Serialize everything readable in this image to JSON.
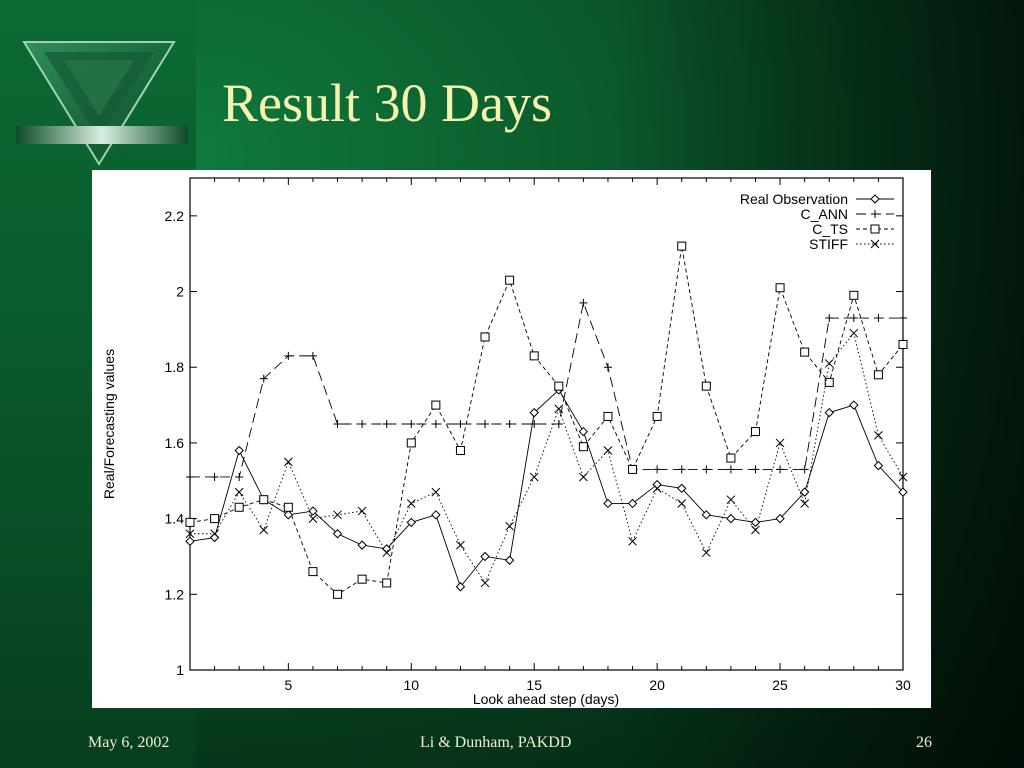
{
  "slide": {
    "title": "Result 30 Days",
    "footer": {
      "date": "May 6, 2002",
      "author": "Li & Dunham, PAKDD",
      "page": "26"
    },
    "colors": {
      "title_text": "#f6f2b0",
      "background": "#0b5a2c"
    },
    "logo_icon": "green-inverted-triangle-icon"
  },
  "chart_data": {
    "type": "line",
    "title": "",
    "xlabel": "Look ahead step (days)",
    "ylabel": "Real/Forecasting values",
    "xlim": [
      1,
      30
    ],
    "ylim": [
      1,
      2.3
    ],
    "xticks": [
      5,
      10,
      15,
      20,
      25,
      30
    ],
    "yticks": [
      1,
      1.2,
      1.4,
      1.6,
      1.8,
      2,
      2.2
    ],
    "ytick_labels": [
      "1",
      "1.2",
      "1.4",
      "1.6",
      "1.8",
      "2",
      "2.2"
    ],
    "grid": false,
    "legend_position": "top-right",
    "x": [
      1,
      2,
      3,
      4,
      5,
      6,
      7,
      8,
      9,
      10,
      11,
      12,
      13,
      14,
      15,
      16,
      17,
      18,
      19,
      20,
      21,
      22,
      23,
      24,
      25,
      26,
      27,
      28,
      29,
      30
    ],
    "series": [
      {
        "name": "Real Observation",
        "marker": "diamond",
        "dash": "solid",
        "values": [
          1.34,
          1.35,
          1.58,
          1.45,
          1.41,
          1.42,
          1.36,
          1.33,
          1.32,
          1.39,
          1.41,
          1.22,
          1.3,
          1.29,
          1.68,
          1.74,
          1.63,
          1.44,
          1.44,
          1.49,
          1.48,
          1.41,
          1.4,
          1.39,
          1.4,
          1.47,
          1.68,
          1.7,
          1.54,
          1.47
        ]
      },
      {
        "name": "C_ANN",
        "marker": "plus",
        "dash": "long-dash",
        "values": [
          1.51,
          1.51,
          1.51,
          1.77,
          1.83,
          1.83,
          1.65,
          1.65,
          1.65,
          1.65,
          1.65,
          1.65,
          1.65,
          1.65,
          1.65,
          1.65,
          1.97,
          1.8,
          1.53,
          1.53,
          1.53,
          1.53,
          1.53,
          1.53,
          1.53,
          1.53,
          1.93,
          1.93,
          1.93,
          1.93
        ]
      },
      {
        "name": "C_TS",
        "marker": "square",
        "dash": "short-dash",
        "values": [
          1.39,
          1.4,
          1.43,
          1.45,
          1.43,
          1.26,
          1.2,
          1.24,
          1.23,
          1.6,
          1.7,
          1.58,
          1.88,
          2.03,
          1.83,
          1.75,
          1.59,
          1.67,
          1.53,
          1.67,
          2.12,
          1.75,
          1.56,
          1.63,
          2.01,
          1.84,
          1.76,
          1.99,
          1.78,
          1.86
        ]
      },
      {
        "name": "STIFF",
        "marker": "cross",
        "dash": "dotted",
        "values": [
          1.36,
          1.36,
          1.47,
          1.37,
          1.55,
          1.4,
          1.41,
          1.42,
          1.31,
          1.44,
          1.47,
          1.33,
          1.23,
          1.38,
          1.51,
          1.69,
          1.51,
          1.58,
          1.34,
          1.48,
          1.44,
          1.31,
          1.45,
          1.37,
          1.6,
          1.44,
          1.81,
          1.89,
          1.62,
          1.51
        ]
      }
    ]
  }
}
